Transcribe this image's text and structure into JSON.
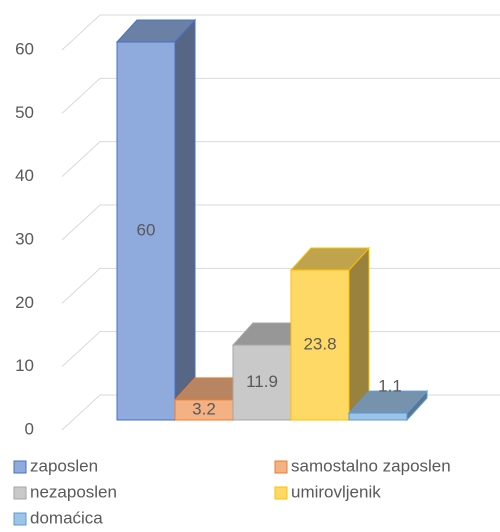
{
  "chart_data": {
    "type": "bar3d",
    "categories": [
      "zaposlen",
      "samostalno zaposlen",
      "nezaposlen",
      "umirovljenik",
      "domaćica"
    ],
    "values": [
      60,
      3.2,
      11.9,
      23.8,
      1.1
    ],
    "colors": [
      "#8faadc",
      "#f4b183",
      "#c9c9c9",
      "#ffd966",
      "#9dc3e6"
    ],
    "edge_colors": [
      "#4472c4",
      "#ed7d31",
      "#a5a5a5",
      "#ffc000",
      "#5b9bd5"
    ],
    "ylim": [
      0,
      60
    ],
    "yticks": [
      0,
      10,
      20,
      30,
      40,
      50,
      60
    ],
    "grid": true,
    "legend": "bottom"
  }
}
